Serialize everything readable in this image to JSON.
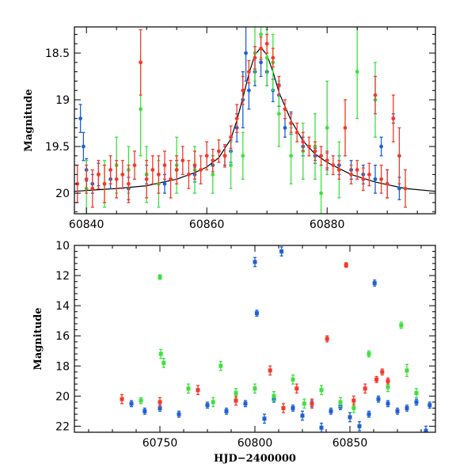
{
  "colors": {
    "blue": "#1f5fd6",
    "green": "#3fe03f",
    "red": "#f23a2a",
    "model": "#000000"
  },
  "chart_data": [
    {
      "type": "scatter",
      "title": "",
      "xlabel": "",
      "ylabel": "Magnitude",
      "xlim": [
        60838,
        60898
      ],
      "ylim": [
        20.22,
        18.22
      ],
      "y_inverted": true,
      "x_ticks": [
        60840,
        60860,
        60880
      ],
      "y_ticks": [
        18.5,
        19,
        19.5,
        20
      ],
      "x_tick_labels": [
        "60840",
        "60860",
        "60880"
      ],
      "y_tick_labels": [
        "18.5",
        "19",
        "19.5",
        "20"
      ],
      "model_curve": {
        "x": [
          60838,
          60845,
          60850,
          60855,
          60858,
          60860,
          60862,
          60864,
          60865,
          60866,
          60867,
          60868,
          60869,
          60870,
          60871,
          60872,
          60874,
          60876,
          60878,
          60880,
          60884,
          60888,
          60893,
          60898
        ],
        "y": [
          19.98,
          19.95,
          19.92,
          19.85,
          19.78,
          19.72,
          19.62,
          19.42,
          19.22,
          18.98,
          18.72,
          18.52,
          18.44,
          18.52,
          18.7,
          18.92,
          19.22,
          19.44,
          19.58,
          19.67,
          19.8,
          19.88,
          19.95,
          19.98
        ]
      },
      "series": [
        {
          "color": "blue",
          "x": [
            60839,
            60839.5,
            60840,
            60841,
            60842,
            60844,
            60847,
            60850,
            60853,
            60855,
            60858,
            60861,
            60863,
            60864,
            60865,
            60866,
            60866.5,
            60867,
            60868,
            60869,
            60870,
            60871,
            60872,
            60873,
            60874,
            60876,
            60878,
            60880,
            60882,
            60884,
            60886,
            60888,
            60889,
            60890,
            60891,
            60892
          ],
          "y": [
            19.2,
            19.5,
            19.75,
            19.9,
            19.8,
            19.85,
            19.95,
            19.8,
            19.9,
            19.75,
            19.8,
            19.7,
            19.6,
            19.55,
            19.3,
            19.0,
            18.5,
            18.9,
            18.7,
            18.6,
            18.7,
            18.9,
            18.95,
            19.3,
            19.25,
            19.5,
            19.6,
            19.65,
            19.7,
            19.75,
            19.8,
            19.85,
            19.5,
            19.9,
            19.2,
            19.95
          ],
          "err": [
            0.15,
            0.15,
            0.12,
            0.1,
            0.12,
            0.1,
            0.12,
            0.1,
            0.1,
            0.1,
            0.08,
            0.1,
            0.1,
            0.12,
            0.15,
            0.3,
            0.3,
            0.2,
            0.15,
            0.15,
            0.15,
            0.12,
            0.12,
            0.1,
            0.12,
            0.1,
            0.08,
            0.08,
            0.1,
            0.1,
            0.1,
            0.15,
            0.1,
            0.15,
            0.05,
            0.12
          ]
        },
        {
          "color": "green",
          "x": [
            60840,
            60843,
            60845,
            60847,
            60849,
            60850,
            60852,
            60855,
            60858,
            60861,
            60864,
            60866,
            60868,
            60869,
            60870,
            60871,
            60872,
            60874,
            60876,
            60878,
            60879,
            60880,
            60882,
            60885,
            60888
          ],
          "y": [
            19.95,
            19.9,
            19.7,
            19.75,
            19.1,
            19.8,
            19.9,
            19.7,
            19.75,
            19.8,
            19.7,
            19.6,
            18.5,
            18.3,
            18.55,
            18.6,
            19.15,
            19.6,
            19.55,
            19.5,
            20.0,
            19.3,
            19.75,
            18.7,
            19.0
          ],
          "err": [
            0.3,
            0.25,
            0.3,
            0.25,
            0.5,
            0.3,
            0.25,
            0.3,
            0.25,
            0.2,
            0.25,
            0.25,
            0.3,
            0.25,
            0.3,
            0.3,
            0.35,
            0.3,
            0.3,
            0.35,
            0.3,
            0.5,
            0.3,
            0.5,
            0.4
          ]
        },
        {
          "color": "red",
          "x": [
            60838.5,
            60840,
            60841,
            60842,
            60843,
            60844,
            60845,
            60846,
            60847,
            60848,
            60849,
            60850,
            60851,
            60852,
            60853,
            60854,
            60855,
            60856,
            60857,
            60858,
            60859,
            60860,
            60861,
            60862,
            60863,
            60864,
            60865,
            60866,
            60867,
            60868,
            60869,
            60870,
            60871,
            60872,
            60873,
            60874,
            60875,
            60876,
            60877,
            60878,
            60879,
            60880,
            60881,
            60882,
            60883,
            60884,
            60885,
            60886,
            60887,
            60888,
            60889,
            60890,
            60891,
            60892,
            60893
          ],
          "y": [
            19.9,
            19.85,
            19.95,
            19.8,
            19.9,
            19.75,
            19.85,
            19.8,
            19.9,
            19.7,
            18.6,
            19.85,
            19.75,
            19.8,
            19.7,
            19.85,
            19.75,
            19.65,
            19.8,
            19.7,
            19.75,
            19.6,
            19.65,
            19.55,
            19.6,
            19.4,
            19.2,
            18.9,
            18.7,
            18.55,
            18.45,
            18.4,
            18.55,
            18.85,
            19.1,
            19.25,
            19.35,
            19.45,
            19.5,
            19.55,
            19.6,
            19.65,
            19.7,
            19.75,
            19.3,
            19.8,
            19.75,
            19.85,
            19.8,
            18.95,
            19.85,
            19.9,
            19.2,
            19.6,
            19.95
          ],
          "err": [
            0.2,
            0.15,
            0.2,
            0.15,
            0.2,
            0.15,
            0.2,
            0.15,
            0.2,
            0.15,
            0.35,
            0.2,
            0.15,
            0.2,
            0.15,
            0.2,
            0.15,
            0.15,
            0.15,
            0.15,
            0.15,
            0.15,
            0.12,
            0.12,
            0.12,
            0.12,
            0.15,
            0.15,
            0.12,
            0.12,
            0.12,
            0.1,
            0.1,
            0.1,
            0.1,
            0.1,
            0.1,
            0.1,
            0.1,
            0.1,
            0.1,
            0.1,
            0.1,
            0.1,
            0.3,
            0.1,
            0.1,
            0.12,
            0.12,
            0.2,
            0.15,
            0.15,
            0.25,
            0.3,
            0.2
          ]
        }
      ]
    },
    {
      "type": "scatter",
      "title": "",
      "xlabel": "HJD−2400000",
      "ylabel": "Magnitude",
      "xlim": [
        60705,
        60895
      ],
      "ylim": [
        22.4,
        10
      ],
      "y_inverted": true,
      "x_ticks": [
        60750,
        60800,
        60850
      ],
      "y_ticks": [
        10,
        12,
        14,
        16,
        18,
        20,
        22
      ],
      "x_tick_labels": [
        "60750",
        "60800",
        "60850"
      ],
      "y_tick_labels": [
        "10",
        "12",
        "14",
        "16",
        "18",
        "20",
        "22"
      ],
      "series": [
        {
          "color": "blue",
          "x": [
            60735,
            60742,
            60750,
            60760,
            60775,
            60785,
            60795,
            60800,
            60801,
            60805,
            60810,
            60814,
            60820,
            60825,
            60830,
            60835,
            60840,
            60845,
            60850,
            60855,
            60860,
            60863,
            60865,
            60870,
            60875,
            60880,
            60885,
            60890,
            60892
          ],
          "y": [
            20.5,
            21.0,
            20.8,
            21.2,
            20.6,
            21.0,
            20.5,
            11.1,
            14.5,
            21.5,
            20.2,
            10.4,
            20.8,
            21.3,
            20.5,
            22.1,
            21.0,
            20.7,
            21.4,
            22.0,
            21.2,
            12.5,
            20.2,
            20.5,
            21.0,
            20.8,
            20.4,
            22.3,
            20.6
          ],
          "err": [
            0.2,
            0.2,
            0.2,
            0.2,
            0.2,
            0.2,
            0.2,
            0.3,
            0.2,
            0.3,
            0.2,
            0.3,
            0.2,
            0.3,
            0.2,
            0.3,
            0.2,
            0.2,
            0.3,
            0.3,
            0.2,
            0.2,
            0.2,
            0.2,
            0.2,
            0.2,
            0.2,
            0.3,
            0.2
          ]
        },
        {
          "color": "green",
          "x": [
            60740,
            60750,
            60750.5,
            60752,
            60765,
            60778,
            60782,
            60790,
            60800,
            60810,
            60820,
            60826,
            60835,
            60845,
            60852,
            60860,
            60870,
            60877,
            60880,
            60885
          ],
          "y": [
            20.3,
            12.1,
            17.2,
            17.8,
            19.5,
            20.4,
            18.0,
            19.8,
            19.5,
            20.0,
            18.9,
            20.5,
            19.6,
            20.4,
            20.8,
            17.2,
            19.4,
            15.3,
            18.3,
            19.8
          ],
          "err": [
            0.2,
            0.15,
            0.3,
            0.3,
            0.3,
            0.3,
            0.3,
            0.3,
            0.3,
            0.3,
            0.3,
            0.3,
            0.3,
            0.3,
            0.3,
            0.2,
            0.3,
            0.2,
            0.4,
            0.3
          ]
        },
        {
          "color": "red",
          "x": [
            60730,
            60750,
            60770,
            60790,
            60808,
            60815,
            60822,
            60830,
            60838,
            60848,
            60852,
            60858,
            60864,
            60867,
            60870
          ],
          "y": [
            20.2,
            20.4,
            19.6,
            20.3,
            18.3,
            20.8,
            19.5,
            20.5,
            16.2,
            11.3,
            20.3,
            19.5,
            18.9,
            18.4,
            19.0
          ],
          "err": [
            0.3,
            0.3,
            0.3,
            0.3,
            0.3,
            0.3,
            0.3,
            0.3,
            0.2,
            0.15,
            0.3,
            0.3,
            0.2,
            0.2,
            0.2
          ]
        }
      ]
    }
  ]
}
